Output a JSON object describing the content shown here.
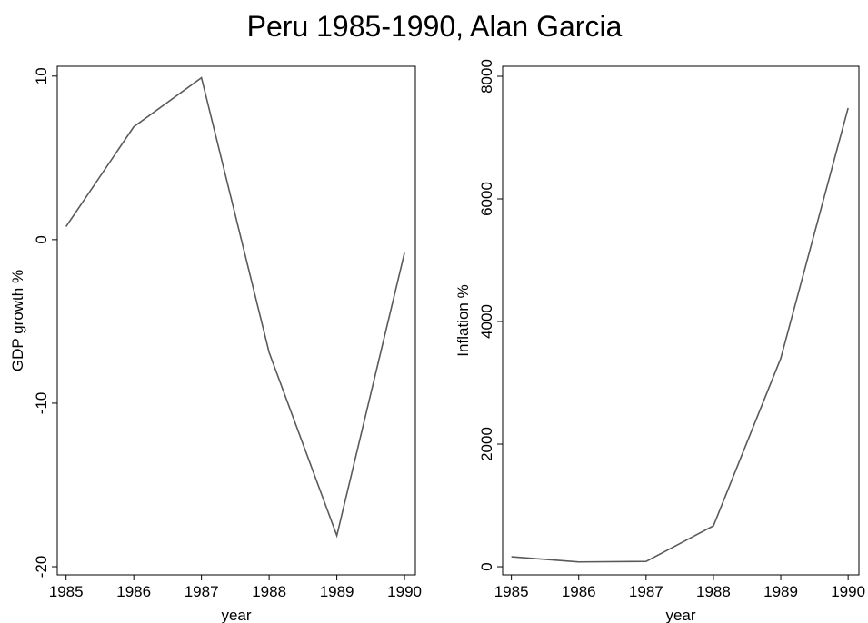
{
  "title": "Peru 1985-1990, Alan Garcia",
  "chart_data": [
    {
      "type": "line",
      "xlabel": "year",
      "ylabel": "GDP growth %",
      "color": "#5a5a5a",
      "x": [
        1985,
        1986,
        1987,
        1988,
        1989,
        1990
      ],
      "values": [
        0.8,
        6.9,
        9.9,
        -6.9,
        -18.1,
        -0.8
      ],
      "xlim": [
        1984.87,
        1990.16
      ],
      "xticks": [
        1985,
        1986,
        1987,
        1988,
        1989,
        1990
      ],
      "ylim": [
        -20.5,
        10.6
      ],
      "yticks": [
        -20,
        -10,
        0,
        10
      ],
      "grid": false
    },
    {
      "type": "line",
      "xlabel": "year",
      "ylabel": "Inflation %",
      "color": "#5a5a5a",
      "x": [
        1985,
        1986,
        1987,
        1988,
        1989,
        1990
      ],
      "values": [
        163,
        78,
        86,
        667,
        3399,
        7482
      ],
      "xlim": [
        1984.87,
        1990.16
      ],
      "xticks": [
        1985,
        1986,
        1987,
        1988,
        1989,
        1990
      ],
      "ylim": [
        -133,
        8163
      ],
      "yticks": [
        0,
        2000,
        4000,
        6000,
        8000
      ],
      "grid": false
    }
  ]
}
